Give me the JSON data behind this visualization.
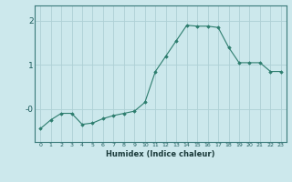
{
  "x": [
    0,
    1,
    2,
    3,
    4,
    5,
    6,
    7,
    8,
    9,
    10,
    11,
    12,
    13,
    14,
    15,
    16,
    17,
    18,
    19,
    20,
    21,
    22,
    23
  ],
  "y": [
    -0.45,
    -0.25,
    -0.1,
    -0.1,
    -0.35,
    -0.32,
    -0.22,
    -0.15,
    -0.1,
    -0.05,
    0.15,
    0.85,
    1.2,
    1.55,
    1.9,
    1.88,
    1.88,
    1.85,
    1.4,
    1.05,
    1.05,
    1.05,
    0.85,
    0.85
  ],
  "line_color": "#2d7d6e",
  "marker": "D",
  "markersize": 1.8,
  "linewidth": 0.8,
  "xlabel": "Humidex (Indice chaleur)",
  "bg_color": "#cce8ec",
  "grid_color": "#aed0d5",
  "ylim": [
    -0.75,
    2.35
  ],
  "xlim": [
    -0.5,
    23.5
  ],
  "figsize": [
    3.2,
    2.0
  ],
  "dpi": 100
}
